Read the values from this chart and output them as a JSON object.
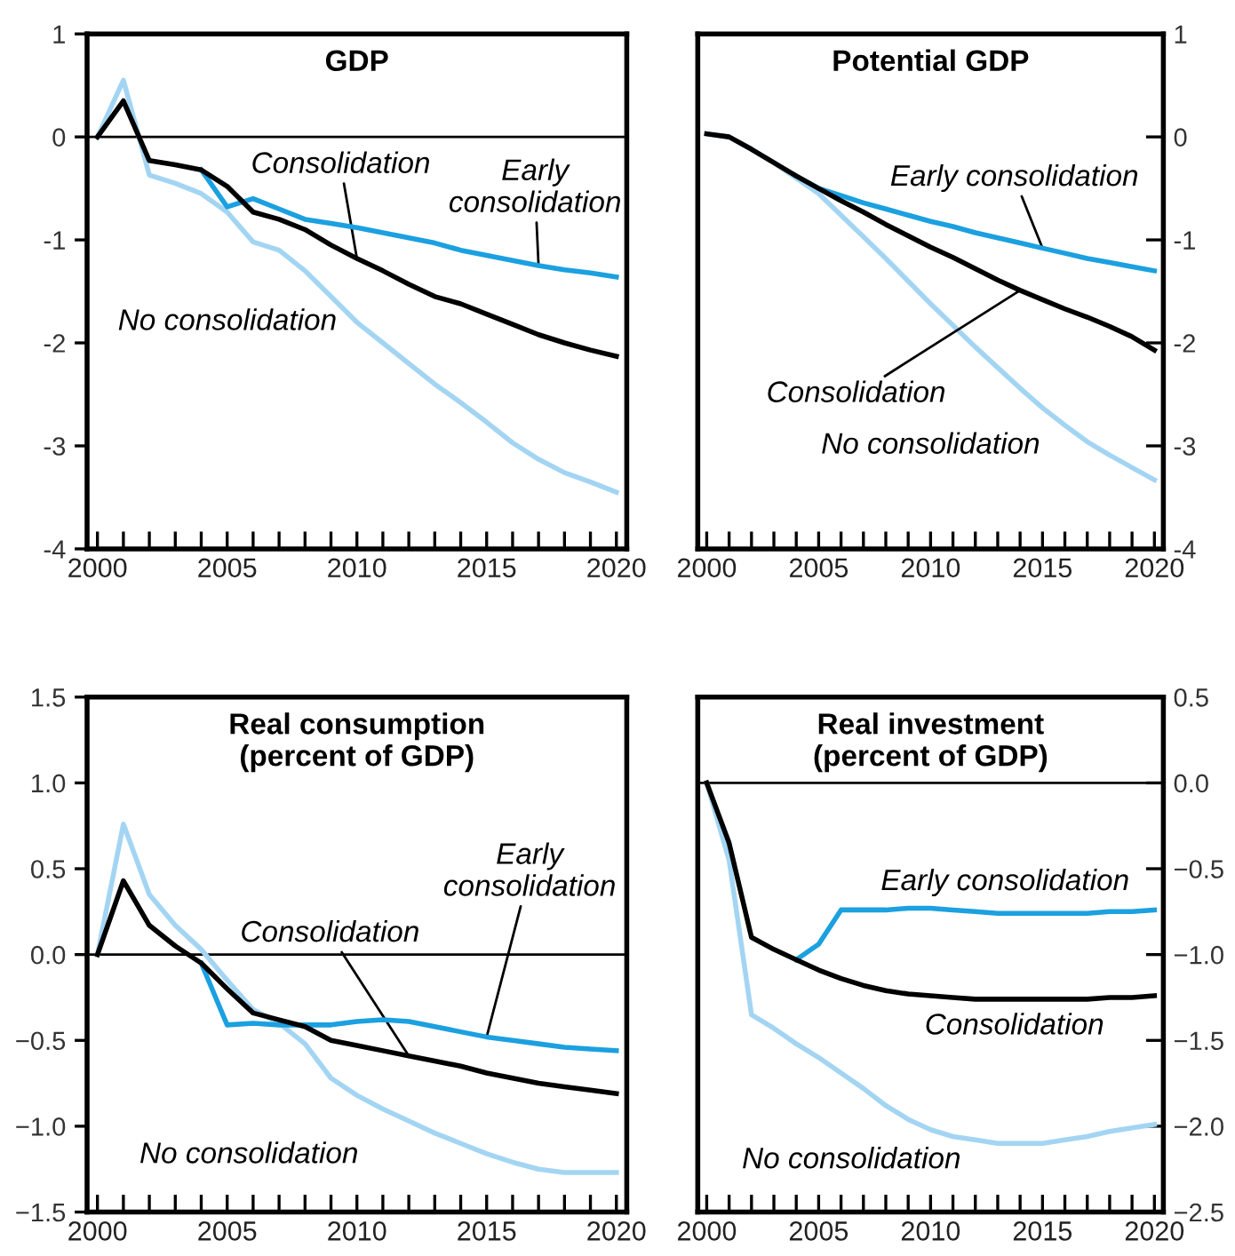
{
  "chart_data": [
    {
      "type": "line",
      "title": "GDP",
      "x": [
        2000,
        2001,
        2002,
        2003,
        2004,
        2005,
        2006,
        2007,
        2008,
        2009,
        2010,
        2011,
        2012,
        2013,
        2014,
        2015,
        2016,
        2017,
        2018,
        2019,
        2020
      ],
      "xlim": [
        1999.6,
        2020.4
      ],
      "xticks": [
        2000,
        2005,
        2010,
        2015,
        2020
      ],
      "ylim": [
        -4,
        1
      ],
      "yticks": [
        -4,
        -3,
        -2,
        -1,
        0,
        1
      ],
      "ref_lines": [
        {
          "axis": "y",
          "value": 0,
          "color": "#000000"
        }
      ],
      "grid": false,
      "legend": false,
      "series": [
        {
          "name": "No consolidation",
          "color": "#a3d5f3",
          "values": [
            0,
            0.55,
            -0.37,
            -0.45,
            -0.55,
            -0.73,
            -1.02,
            -1.1,
            -1.3,
            -1.55,
            -1.8,
            -2.0,
            -2.2,
            -2.4,
            -2.58,
            -2.77,
            -2.97,
            -3.13,
            -3.26,
            -3.35,
            -3.45
          ]
        },
        {
          "name": "Early consolidation",
          "color": "#1ba0e0",
          "values": [
            null,
            null,
            null,
            null,
            -0.32,
            -0.68,
            -0.6,
            -0.7,
            -0.8,
            -0.84,
            -0.88,
            -0.93,
            -0.98,
            -1.03,
            -1.1,
            -1.15,
            -1.2,
            -1.25,
            -1.29,
            -1.32,
            -1.36
          ]
        },
        {
          "name": "Consolidation",
          "color": "#000000",
          "values": [
            0,
            0.35,
            -0.23,
            -0.27,
            -0.32,
            -0.48,
            -0.73,
            -0.8,
            -0.9,
            -1.05,
            -1.18,
            -1.3,
            -1.43,
            -1.55,
            -1.62,
            -1.72,
            -1.82,
            -1.92,
            -2.0,
            -2.07,
            -2.13
          ]
        }
      ]
    },
    {
      "type": "line",
      "title": "Potential GDP",
      "x": [
        2000,
        2001,
        2002,
        2003,
        2004,
        2005,
        2006,
        2007,
        2008,
        2009,
        2010,
        2011,
        2012,
        2013,
        2014,
        2015,
        2016,
        2017,
        2018,
        2019,
        2020
      ],
      "xlim": [
        1999.6,
        2020.4
      ],
      "xticks": [
        2000,
        2005,
        2010,
        2015,
        2020
      ],
      "ylim": [
        -4,
        1
      ],
      "yticks": [
        -4,
        -3,
        -2,
        -1,
        0,
        1
      ],
      "grid": false,
      "legend": false,
      "series": [
        {
          "name": "No consolidation",
          "color": "#a3d5f3",
          "values": [
            0.03,
            0,
            -0.12,
            -0.25,
            -0.4,
            -0.55,
            -0.76,
            -0.97,
            -1.18,
            -1.4,
            -1.62,
            -1.83,
            -2.04,
            -2.24,
            -2.44,
            -2.63,
            -2.8,
            -2.96,
            -3.09,
            -3.21,
            -3.33
          ]
        },
        {
          "name": "Early consolidation",
          "color": "#1ba0e0",
          "values": [
            null,
            null,
            null,
            null,
            -0.38,
            -0.5,
            -0.57,
            -0.64,
            -0.7,
            -0.76,
            -0.82,
            -0.87,
            -0.93,
            -0.98,
            -1.03,
            -1.08,
            -1.13,
            -1.18,
            -1.22,
            -1.26,
            -1.3
          ]
        },
        {
          "name": "Consolidation",
          "color": "#000000",
          "values": [
            0.03,
            0,
            -0.12,
            -0.25,
            -0.38,
            -0.5,
            -0.62,
            -0.73,
            -0.85,
            -0.96,
            -1.07,
            -1.17,
            -1.28,
            -1.39,
            -1.49,
            -1.58,
            -1.67,
            -1.75,
            -1.84,
            -1.94,
            -2.07
          ]
        }
      ]
    },
    {
      "type": "line",
      "title": "Real consumption\n(percent of GDP)",
      "x": [
        2000,
        2001,
        2002,
        2003,
        2004,
        2005,
        2006,
        2007,
        2008,
        2009,
        2010,
        2011,
        2012,
        2013,
        2014,
        2015,
        2016,
        2017,
        2018,
        2019,
        2020
      ],
      "xlim": [
        1999.6,
        2020.4
      ],
      "xticks": [
        2000,
        2005,
        2010,
        2015,
        2020
      ],
      "ylim": [
        -1.5,
        1.5
      ],
      "yticks": [
        {
          "value": -1.5,
          "label": "−1.5"
        },
        {
          "value": -1.0,
          "label": "−1.0"
        },
        {
          "value": -0.5,
          "label": "−0.5"
        },
        {
          "value": 0,
          "label": "0.0"
        },
        {
          "value": 0.5,
          "label": "0.5"
        },
        {
          "value": 1.0,
          "label": "1.0"
        },
        {
          "value": 1.5,
          "label": "1.5"
        }
      ],
      "ref_lines": [
        {
          "axis": "y",
          "value": 0,
          "color": "#000000"
        }
      ],
      "grid": false,
      "legend": false,
      "series": [
        {
          "name": "No consolidation",
          "color": "#a3d5f3",
          "values": [
            0,
            0.76,
            0.35,
            0.17,
            0.03,
            -0.15,
            -0.32,
            -0.4,
            -0.52,
            -0.72,
            -0.82,
            -0.9,
            -0.97,
            -1.04,
            -1.1,
            -1.16,
            -1.21,
            -1.25,
            -1.27,
            -1.27,
            -1.27
          ]
        },
        {
          "name": "Early consolidation",
          "color": "#1ba0e0",
          "values": [
            null,
            null,
            null,
            null,
            -0.05,
            -0.41,
            -0.4,
            -0.41,
            -0.41,
            -0.41,
            -0.39,
            -0.38,
            -0.39,
            -0.42,
            -0.45,
            -0.48,
            -0.5,
            -0.52,
            -0.54,
            -0.55,
            -0.56
          ]
        },
        {
          "name": "Consolidation",
          "color": "#000000",
          "values": [
            0,
            0.43,
            0.17,
            0.05,
            -0.05,
            -0.2,
            -0.34,
            -0.38,
            -0.42,
            -0.5,
            -0.53,
            -0.56,
            -0.59,
            -0.62,
            -0.65,
            -0.69,
            -0.72,
            -0.75,
            -0.77,
            -0.79,
            -0.81
          ]
        }
      ]
    },
    {
      "type": "line",
      "title": "Real investment\n(percent of GDP)",
      "x": [
        2000,
        2001,
        2002,
        2003,
        2004,
        2005,
        2006,
        2007,
        2008,
        2009,
        2010,
        2011,
        2012,
        2013,
        2014,
        2015,
        2016,
        2017,
        2018,
        2019,
        2020
      ],
      "xlim": [
        1999.6,
        2020.4
      ],
      "xticks": [
        2000,
        2005,
        2010,
        2015,
        2020
      ],
      "ylim": [
        -2.5,
        0.5
      ],
      "yticks": [
        {
          "value": -2.5,
          "label": "−2.5"
        },
        {
          "value": -2.0,
          "label": "−2.0"
        },
        {
          "value": -1.5,
          "label": "−1.5"
        },
        {
          "value": -1.0,
          "label": "−1.0"
        },
        {
          "value": -0.5,
          "label": "−0.5"
        },
        {
          "value": 0,
          "label": "0.0"
        },
        {
          "value": 0.5,
          "label": "0.5"
        }
      ],
      "ref_lines": [
        {
          "axis": "y",
          "value": 0,
          "color": "#000000"
        }
      ],
      "grid": false,
      "legend": false,
      "series": [
        {
          "name": "No consolidation",
          "color": "#a3d5f3",
          "values": [
            0,
            -0.45,
            -1.35,
            -1.43,
            -1.52,
            -1.6,
            -1.69,
            -1.78,
            -1.88,
            -1.96,
            -2.02,
            -2.06,
            -2.08,
            -2.1,
            -2.1,
            -2.1,
            -2.08,
            -2.06,
            -2.03,
            -2.01,
            -1.99
          ]
        },
        {
          "name": "Early consolidation",
          "color": "#1ba0e0",
          "values": [
            null,
            null,
            null,
            null,
            -1.03,
            -0.94,
            -0.74,
            -0.74,
            -0.74,
            -0.73,
            -0.73,
            -0.74,
            -0.75,
            -0.76,
            -0.76,
            -0.76,
            -0.76,
            -0.76,
            -0.75,
            -0.75,
            -0.74
          ]
        },
        {
          "name": "Consolidation",
          "color": "#000000",
          "values": [
            0,
            -0.35,
            -0.9,
            -0.97,
            -1.03,
            -1.09,
            -1.14,
            -1.18,
            -1.21,
            -1.23,
            -1.24,
            -1.25,
            -1.26,
            -1.26,
            -1.26,
            -1.26,
            -1.26,
            -1.26,
            -1.25,
            -1.25,
            -1.24
          ]
        }
      ]
    }
  ]
}
